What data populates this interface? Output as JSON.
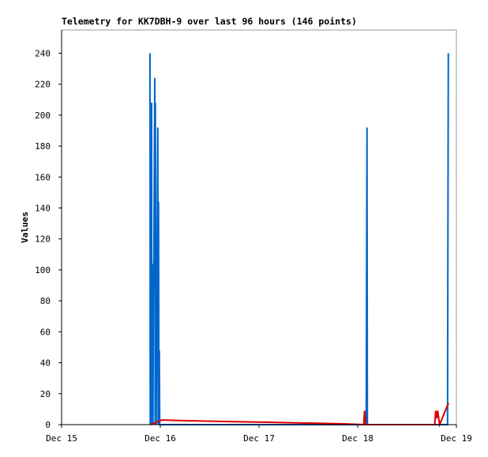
{
  "chart_data": {
    "type": "line",
    "title": "Telemetry for KK7DBH-9 over last 96 hours (146 points)",
    "y_label": "Values",
    "xlim": [
      0,
      4
    ],
    "xticks": [
      {
        "value": 0,
        "label": "Dec 15"
      },
      {
        "value": 1,
        "label": "Dec 16"
      },
      {
        "value": 2,
        "label": "Dec 17"
      },
      {
        "value": 3,
        "label": "Dec 18"
      },
      {
        "value": 4,
        "label": "Dec 19"
      }
    ],
    "ylim": [
      0,
      255
    ],
    "yticks": [
      0,
      20,
      40,
      60,
      80,
      100,
      120,
      140,
      160,
      180,
      200,
      220,
      240
    ],
    "series": [
      {
        "color": "#0066cc",
        "x": [
          0.896,
          0.898,
          0.9,
          0.904,
          0.908,
          0.912,
          0.914,
          0.918,
          0.922,
          0.926,
          0.93,
          0.934,
          0.94,
          0.944,
          0.948,
          0.95,
          0.954,
          0.958,
          0.975,
          0.978,
          0.982,
          0.986,
          0.99,
          0.994,
          3.086,
          3.09,
          3.094,
          3.098,
          3.91,
          3.914,
          3.918
        ],
        "values": [
          240,
          0,
          128,
          0,
          104,
          208,
          0,
          104,
          90,
          0,
          96,
          88,
          176,
          224,
          0,
          208,
          80,
          0,
          192,
          0,
          144,
          0,
          48,
          0,
          0,
          96,
          192,
          0,
          0,
          120,
          240
        ]
      },
      {
        "color": "#dd0000",
        "x": [
          0.9,
          1.016,
          1.3,
          1.7,
          2.1,
          2.5,
          2.87,
          3.06,
          3.07,
          3.08,
          3.78,
          3.79,
          3.8,
          3.81,
          3.83,
          3.92
        ],
        "values": [
          0,
          3,
          2.5,
          2,
          1.5,
          1,
          0.5,
          0,
          9,
          0,
          0,
          9,
          4,
          9,
          0,
          14
        ]
      }
    ]
  }
}
